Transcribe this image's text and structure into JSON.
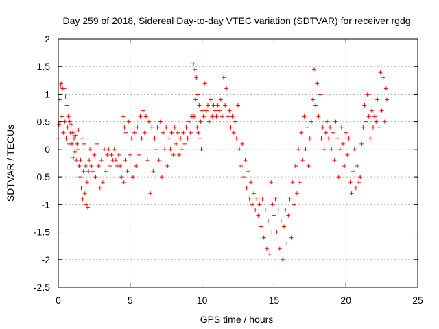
{
  "chart_data": {
    "type": "scatter",
    "title": "Day 259 of 2018, Sidereal Day-to-day VTEC variation (SDTVAR) for receiver rgdg",
    "xlabel": "GPS time / hours",
    "ylabel": "SDTVAR / TECUs",
    "xlim": [
      0,
      25
    ],
    "ylim": [
      -2.5,
      2
    ],
    "xticks": [
      "0",
      "5",
      "10",
      "15",
      "20",
      "25"
    ],
    "yticks": [
      "-2.5",
      "-2",
      "-1.5",
      "-1",
      "-0.5",
      "0",
      "0.5",
      "1",
      "1.5",
      "2"
    ],
    "grid": true,
    "marker": "+",
    "color": "#ff0000",
    "series": [
      {
        "name": "SDTVAR",
        "points": [
          [
            0.0,
            0.2
          ],
          [
            0.05,
            0.45
          ],
          [
            0.1,
            0.9
          ],
          [
            0.15,
            1.15
          ],
          [
            0.2,
            1.2
          ],
          [
            0.25,
            0.6
          ],
          [
            0.3,
            1.1
          ],
          [
            0.35,
            0.3
          ],
          [
            0.4,
            1.1
          ],
          [
            0.45,
            0.5
          ],
          [
            0.5,
            0.95
          ],
          [
            0.55,
            0.2
          ],
          [
            0.6,
            0.8
          ],
          [
            0.65,
            0.4
          ],
          [
            0.7,
            0.6
          ],
          [
            0.75,
            0.1
          ],
          [
            0.8,
            0.5
          ],
          [
            0.85,
            0.3
          ],
          [
            0.9,
            0.45
          ],
          [
            0.95,
            0.1
          ],
          [
            1.0,
            0.3
          ],
          [
            1.05,
            -0.15
          ],
          [
            1.1,
            0.2
          ],
          [
            1.15,
            -0.05
          ],
          [
            1.2,
            0.25
          ],
          [
            1.25,
            -0.2
          ],
          [
            1.3,
            0.1
          ],
          [
            1.35,
            0.0
          ],
          [
            1.4,
            0.35
          ],
          [
            1.45,
            -0.3
          ],
          [
            1.5,
            -0.5
          ],
          [
            1.55,
            -0.2
          ],
          [
            1.6,
            -0.7
          ],
          [
            1.65,
            0.2
          ],
          [
            1.7,
            -0.9
          ],
          [
            1.75,
            -0.4
          ],
          [
            1.8,
            0.1
          ],
          [
            1.85,
            -0.8
          ],
          [
            1.9,
            -0.3
          ],
          [
            1.95,
            -1.0
          ],
          [
            2.0,
            -0.6
          ],
          [
            2.05,
            -1.05
          ],
          [
            2.1,
            -0.4
          ],
          [
            2.15,
            -0.2
          ],
          [
            2.2,
            0.0
          ],
          [
            2.3,
            -0.3
          ],
          [
            2.4,
            -0.4
          ],
          [
            2.5,
            -0.1
          ],
          [
            2.6,
            -0.5
          ],
          [
            2.7,
            0.1
          ],
          [
            2.8,
            -0.3
          ],
          [
            2.9,
            -0.7
          ],
          [
            3.0,
            -0.2
          ],
          [
            3.1,
            -0.6
          ],
          [
            3.2,
            0.0
          ],
          [
            3.3,
            -0.4
          ],
          [
            3.4,
            -0.1
          ],
          [
            3.5,
            0.0
          ],
          [
            3.6,
            -0.3
          ],
          [
            3.7,
            -0.1
          ],
          [
            3.8,
            -0.2
          ],
          [
            3.9,
            0.0
          ],
          [
            4.0,
            -0.2
          ],
          [
            4.1,
            -0.3
          ],
          [
            4.2,
            -0.1
          ],
          [
            4.3,
            -0.3
          ],
          [
            4.4,
            -0.5
          ],
          [
            4.5,
            0.6
          ],
          [
            4.55,
            -0.6
          ],
          [
            4.6,
            0.4
          ],
          [
            4.65,
            -0.2
          ],
          [
            4.7,
            0.3
          ],
          [
            4.8,
            -0.4
          ],
          [
            4.9,
            0.5
          ],
          [
            5.0,
            -0.1
          ],
          [
            5.1,
            0.2
          ],
          [
            5.2,
            -0.5
          ],
          [
            5.3,
            0.3
          ],
          [
            5.4,
            -0.3
          ],
          [
            5.5,
            0.4
          ],
          [
            5.6,
            -0.1
          ],
          [
            5.7,
            0.6
          ],
          [
            5.8,
            0.2
          ],
          [
            5.9,
            0.7
          ],
          [
            6.0,
            0.3
          ],
          [
            6.1,
            0.6
          ],
          [
            6.2,
            -0.2
          ],
          [
            6.3,
            0.5
          ],
          [
            6.4,
            -0.8
          ],
          [
            6.5,
            0.4
          ],
          [
            6.6,
            -0.4
          ],
          [
            6.7,
            0.2
          ],
          [
            6.8,
            0.0
          ],
          [
            6.9,
            0.4
          ],
          [
            7.0,
            -0.2
          ],
          [
            7.1,
            0.5
          ],
          [
            7.2,
            -0.5
          ],
          [
            7.3,
            0.3
          ],
          [
            7.4,
            0.0
          ],
          [
            7.5,
            0.4
          ],
          [
            7.6,
            -0.3
          ],
          [
            7.7,
            0.2
          ],
          [
            7.8,
            0.0
          ],
          [
            7.9,
            0.3
          ],
          [
            8.0,
            -0.1
          ],
          [
            8.1,
            0.4
          ],
          [
            8.2,
            0.1
          ],
          [
            8.3,
            0.3
          ],
          [
            8.4,
            -0.1
          ],
          [
            8.5,
            0.2
          ],
          [
            8.6,
            0.0
          ],
          [
            8.7,
            0.3
          ],
          [
            8.8,
            0.1
          ],
          [
            8.9,
            0.4
          ],
          [
            9.0,
            0.2
          ],
          [
            9.1,
            0.5
          ],
          [
            9.2,
            0.3
          ],
          [
            9.3,
            0.6
          ],
          [
            9.4,
            1.55
          ],
          [
            9.45,
            0.6
          ],
          [
            9.5,
            1.45
          ],
          [
            9.55,
            0.9
          ],
          [
            9.6,
            1.3
          ],
          [
            9.65,
            0.4
          ],
          [
            9.7,
            1.0
          ],
          [
            9.75,
            0.3
          ],
          [
            9.8,
            0.8
          ],
          [
            9.85,
            0.2
          ],
          [
            9.9,
            0.5
          ],
          [
            9.95,
            0.0
          ],
          [
            10.0,
            0.7
          ],
          [
            10.1,
            0.6
          ],
          [
            10.2,
            1.2
          ],
          [
            10.3,
            0.7
          ],
          [
            10.4,
            0.8
          ],
          [
            10.5,
            0.5
          ],
          [
            10.6,
            0.9
          ],
          [
            10.7,
            0.6
          ],
          [
            10.8,
            0.8
          ],
          [
            10.9,
            0.7
          ],
          [
            11.0,
            0.6
          ],
          [
            11.1,
            0.8
          ],
          [
            11.2,
            0.7
          ],
          [
            11.3,
            0.9
          ],
          [
            11.4,
            0.6
          ],
          [
            11.5,
            1.3
          ],
          [
            11.6,
            0.8
          ],
          [
            11.7,
            1.1
          ],
          [
            11.8,
            0.6
          ],
          [
            11.9,
            0.7
          ],
          [
            12.0,
            0.4
          ],
          [
            12.1,
            0.6
          ],
          [
            12.2,
            0.3
          ],
          [
            12.3,
            0.5
          ],
          [
            12.4,
            0.2
          ],
          [
            12.5,
            0.8
          ],
          [
            12.6,
            0.0
          ],
          [
            12.7,
            -0.3
          ],
          [
            12.8,
            0.1
          ],
          [
            12.9,
            -0.5
          ],
          [
            13.0,
            -0.2
          ],
          [
            13.1,
            -0.7
          ],
          [
            13.2,
            -0.4
          ],
          [
            13.3,
            -0.9
          ],
          [
            13.4,
            -0.6
          ],
          [
            13.5,
            -1.0
          ],
          [
            13.6,
            -0.8
          ],
          [
            13.7,
            -1.1
          ],
          [
            13.8,
            -0.9
          ],
          [
            13.9,
            -1.2
          ],
          [
            14.0,
            -1.0
          ],
          [
            14.1,
            -1.4
          ],
          [
            14.2,
            -0.9
          ],
          [
            14.3,
            -1.6
          ],
          [
            14.4,
            -1.1
          ],
          [
            14.5,
            -1.8
          ],
          [
            14.6,
            -1.3
          ],
          [
            14.7,
            -1.9
          ],
          [
            14.8,
            -0.6
          ],
          [
            14.85,
            -1.5
          ],
          [
            14.9,
            -1.0
          ],
          [
            15.0,
            -1.2
          ],
          [
            15.1,
            -0.9
          ],
          [
            15.2,
            -1.5
          ],
          [
            15.3,
            -1.1
          ],
          [
            15.4,
            -1.8
          ],
          [
            15.5,
            -1.3
          ],
          [
            15.6,
            -2.0
          ],
          [
            15.7,
            -1.4
          ],
          [
            15.8,
            -1.1
          ],
          [
            15.9,
            -1.7
          ],
          [
            16.0,
            -1.2
          ],
          [
            16.1,
            -0.9
          ],
          [
            16.2,
            -1.6
          ],
          [
            16.3,
            -0.6
          ],
          [
            16.4,
            -1.0
          ],
          [
            16.5,
            -0.3
          ],
          [
            16.6,
            -0.8
          ],
          [
            16.7,
            0.0
          ],
          [
            16.8,
            -0.6
          ],
          [
            16.9,
            0.3
          ],
          [
            17.0,
            -0.2
          ],
          [
            17.1,
            0.6
          ],
          [
            17.2,
            0.0
          ],
          [
            17.3,
            0.4
          ],
          [
            17.4,
            -0.3
          ],
          [
            17.5,
            0.2
          ],
          [
            17.6,
            0.5
          ],
          [
            17.7,
            0.9
          ],
          [
            17.8,
            1.45
          ],
          [
            17.9,
            0.8
          ],
          [
            18.0,
            1.2
          ],
          [
            18.1,
            0.6
          ],
          [
            18.2,
            1.0
          ],
          [
            18.3,
            0.2
          ],
          [
            18.4,
            0.4
          ],
          [
            18.5,
            0.0
          ],
          [
            18.6,
            0.3
          ],
          [
            18.7,
            0.5
          ],
          [
            18.8,
            0.2
          ],
          [
            18.9,
            0.4
          ],
          [
            19.0,
            0.0
          ],
          [
            19.1,
            0.3
          ],
          [
            19.2,
            -0.2
          ],
          [
            19.3,
            0.5
          ],
          [
            19.4,
            0.2
          ],
          [
            19.5,
            -0.5
          ],
          [
            19.6,
            0.0
          ],
          [
            19.7,
            0.4
          ],
          [
            19.8,
            0.1
          ],
          [
            19.9,
            -0.3
          ],
          [
            20.0,
            0.3
          ],
          [
            20.1,
            -0.1
          ],
          [
            20.2,
            0.2
          ],
          [
            20.3,
            -0.6
          ],
          [
            20.4,
            -0.8
          ],
          [
            20.5,
            -0.4
          ],
          [
            20.6,
            0.0
          ],
          [
            20.7,
            -0.7
          ],
          [
            20.8,
            -0.3
          ],
          [
            20.9,
            -0.6
          ],
          [
            21.0,
            -0.5
          ],
          [
            21.1,
            0.1
          ],
          [
            21.2,
            0.4
          ],
          [
            21.3,
            0.8
          ],
          [
            21.4,
            0.5
          ],
          [
            21.5,
            1.0
          ],
          [
            21.6,
            0.6
          ],
          [
            21.7,
            0.2
          ],
          [
            21.8,
            0.7
          ],
          [
            21.9,
            0.4
          ],
          [
            22.0,
            0.6
          ],
          [
            22.1,
            0.5
          ],
          [
            22.2,
            0.9
          ],
          [
            22.3,
            0.4
          ],
          [
            22.4,
            1.4
          ],
          [
            22.5,
            0.7
          ],
          [
            22.6,
            1.3
          ],
          [
            22.7,
            0.5
          ],
          [
            22.8,
            1.1
          ],
          [
            22.85,
            0.9
          ]
        ]
      }
    ]
  }
}
